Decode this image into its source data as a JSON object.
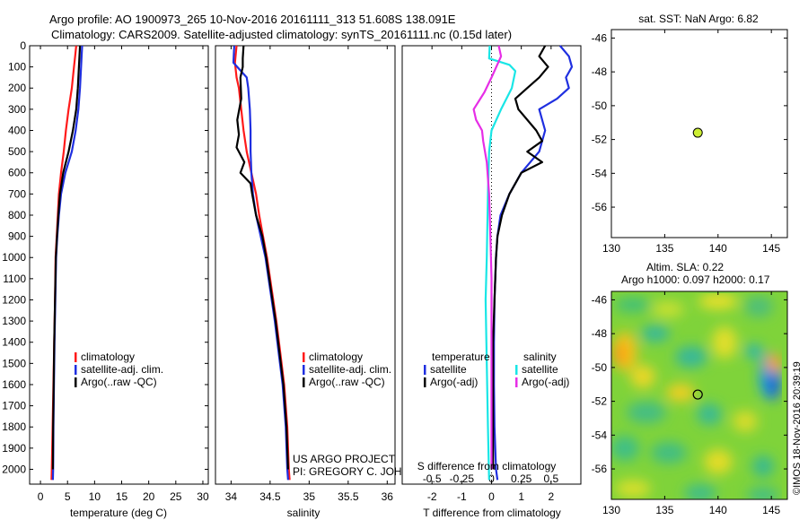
{
  "header": {
    "line1": "Argo profile: AO 1900973_265 10-Nov-2016 20161111_313 51.608S 138.091E",
    "line2": "Climatology: CARS2009. Satellite-adjusted climatology: synTS_20161111.nc (0.15d later)"
  },
  "colors": {
    "climatology": "#ff1a1a",
    "satellite": "#1f2fe0",
    "argo": "#000000",
    "sal_satellite": "#19e6e6",
    "sal_argo": "#e62ee6",
    "marker": "#ccee33"
  },
  "footer": {
    "project": "US ARGO PROJECT",
    "pi": "PI: GREGORY C. JOHNSON",
    "credit": "©IMOS 18-Nov-2016 20:39:19"
  },
  "chart_data": [
    {
      "id": "temperature",
      "type": "line",
      "xlabel": "temperature (deg C)",
      "xlim": [
        -2,
        31
      ],
      "xticks": [
        "0",
        "5",
        "10",
        "15",
        "20",
        "25",
        "30"
      ],
      "ylim": [
        2070,
        0
      ],
      "yticks": [
        "0",
        "100",
        "200",
        "300",
        "400",
        "500",
        "600",
        "700",
        "800",
        "900",
        "1000",
        "1100",
        "1200",
        "1300",
        "1400",
        "1500",
        "1600",
        "1700",
        "1800",
        "1900",
        "2000"
      ],
      "legend": [
        "climatology",
        "satellite-adj. clim.",
        "Argo(..raw -QC)"
      ],
      "series": [
        {
          "name": "climatology",
          "points": [
            [
              6.6,
              0
            ],
            [
              6.4,
              50
            ],
            [
              6.2,
              100
            ],
            [
              5.8,
              200
            ],
            [
              5.2,
              300
            ],
            [
              4.7,
              400
            ],
            [
              4.3,
              500
            ],
            [
              3.8,
              600
            ],
            [
              3.4,
              700
            ],
            [
              3.2,
              800
            ],
            [
              3.0,
              900
            ],
            [
              2.8,
              1000
            ],
            [
              2.7,
              1200
            ],
            [
              2.55,
              1400
            ],
            [
              2.4,
              1600
            ],
            [
              2.25,
              1800
            ],
            [
              2.1,
              2000
            ],
            [
              2.05,
              2050
            ]
          ]
        },
        {
          "name": "satellite-adj. clim.",
          "points": [
            [
              7.7,
              0
            ],
            [
              7.5,
              100
            ],
            [
              7.3,
              200
            ],
            [
              7.0,
              300
            ],
            [
              6.5,
              400
            ],
            [
              5.8,
              500
            ],
            [
              4.6,
              600
            ],
            [
              3.8,
              700
            ],
            [
              3.4,
              800
            ],
            [
              3.1,
              900
            ],
            [
              2.9,
              1000
            ],
            [
              2.75,
              1200
            ],
            [
              2.6,
              1400
            ],
            [
              2.5,
              1600
            ],
            [
              2.4,
              1800
            ],
            [
              2.35,
              2000
            ],
            [
              2.3,
              2050
            ]
          ]
        },
        {
          "name": "Argo(..raw -QC)",
          "points": [
            [
              7.3,
              0
            ],
            [
              7.1,
              100
            ],
            [
              6.9,
              200
            ],
            [
              6.6,
              300
            ],
            [
              6.0,
              400
            ],
            [
              5.2,
              500
            ],
            [
              4.2,
              600
            ],
            [
              3.6,
              700
            ],
            [
              3.3,
              800
            ],
            [
              3.05,
              900
            ],
            [
              2.85,
              1000
            ],
            [
              2.7,
              1200
            ],
            [
              2.55,
              1400
            ],
            [
              2.45,
              1600
            ],
            [
              2.35,
              1800
            ],
            [
              2.3,
              2000
            ]
          ]
        }
      ]
    },
    {
      "id": "salinity",
      "type": "line",
      "xlabel": "salinity",
      "xlim": [
        33.8,
        36.1
      ],
      "xticks": [
        "34",
        "34.5",
        "35",
        "35.5",
        "36"
      ],
      "ylim": [
        2070,
        0
      ],
      "legend": [
        "climatology",
        "satellite-adj. clim.",
        "Argo(..raw -QC)"
      ],
      "series": [
        {
          "name": "climatology",
          "points": [
            [
              34.07,
              0
            ],
            [
              34.05,
              80
            ],
            [
              34.07,
              150
            ],
            [
              34.1,
              200
            ],
            [
              34.13,
              300
            ],
            [
              34.16,
              400
            ],
            [
              34.2,
              500
            ],
            [
              34.26,
              600
            ],
            [
              34.32,
              700
            ],
            [
              34.36,
              800
            ],
            [
              34.41,
              900
            ],
            [
              34.46,
              1000
            ],
            [
              34.52,
              1150
            ],
            [
              34.58,
              1300
            ],
            [
              34.63,
              1450
            ],
            [
              34.68,
              1600
            ],
            [
              34.72,
              1800
            ],
            [
              34.74,
              2000
            ],
            [
              34.75,
              2050
            ]
          ]
        },
        {
          "name": "satellite-adj. clim.",
          "points": [
            [
              34.04,
              0
            ],
            [
              34.03,
              80
            ],
            [
              34.2,
              150
            ],
            [
              34.22,
              200
            ],
            [
              34.24,
              300
            ],
            [
              34.25,
              400
            ],
            [
              34.25,
              500
            ],
            [
              34.26,
              600
            ],
            [
              34.28,
              700
            ],
            [
              34.32,
              800
            ],
            [
              34.38,
              900
            ],
            [
              34.44,
              1000
            ],
            [
              34.5,
              1150
            ],
            [
              34.56,
              1300
            ],
            [
              34.61,
              1450
            ],
            [
              34.66,
              1600
            ],
            [
              34.7,
              1800
            ],
            [
              34.72,
              2000
            ],
            [
              34.73,
              2050
            ]
          ]
        },
        {
          "name": "Argo(..raw -QC)",
          "points": [
            [
              34.16,
              0
            ],
            [
              34.15,
              60
            ],
            [
              34.15,
              100
            ],
            [
              34.12,
              150
            ],
            [
              34.13,
              250
            ],
            [
              34.08,
              350
            ],
            [
              34.1,
              420
            ],
            [
              34.07,
              480
            ],
            [
              34.17,
              550
            ],
            [
              34.12,
              600
            ],
            [
              34.25,
              650
            ],
            [
              34.27,
              700
            ],
            [
              34.32,
              800
            ],
            [
              34.4,
              900
            ],
            [
              34.45,
              1000
            ],
            [
              34.51,
              1150
            ],
            [
              34.57,
              1300
            ],
            [
              34.62,
              1450
            ],
            [
              34.67,
              1600
            ],
            [
              34.71,
              1800
            ],
            [
              34.73,
              2000
            ]
          ]
        }
      ]
    },
    {
      "id": "differences",
      "type": "line",
      "xlabel": "T difference from climatology",
      "xlabel_top": "S difference from climatology",
      "xlim": [
        -3,
        3
      ],
      "xticks": [
        "-2",
        "-1",
        "0",
        "1",
        "2"
      ],
      "xticks_top": [
        "-0.5",
        "-0.25",
        "0",
        "0.25",
        "0.5"
      ],
      "ylim": [
        2070,
        0
      ],
      "legend_temperature": {
        "title": "temperature",
        "items": [
          "satellite",
          "Argo(-adj)"
        ]
      },
      "legend_salinity": {
        "title": "salinity",
        "items": [
          "satellite",
          "Argo(-adj)"
        ]
      },
      "series": [
        {
          "name": "temperature satellite",
          "points": [
            [
              2.3,
              0
            ],
            [
              2.6,
              50
            ],
            [
              2.7,
              100
            ],
            [
              2.5,
              150
            ],
            [
              2.6,
              200
            ],
            [
              2.2,
              250
            ],
            [
              1.6,
              300
            ],
            [
              1.8,
              400
            ],
            [
              1.6,
              500
            ],
            [
              1.0,
              600
            ],
            [
              0.6,
              700
            ],
            [
              0.3,
              800
            ],
            [
              0.2,
              900
            ],
            [
              0.15,
              1000
            ],
            [
              0.1,
              1200
            ],
            [
              0.08,
              1400
            ],
            [
              0.08,
              1600
            ],
            [
              0.1,
              1800
            ],
            [
              0.15,
              2000
            ],
            [
              0.2,
              2050
            ]
          ]
        },
        {
          "name": "temperature Argo(-adj)",
          "points": [
            [
              1.8,
              0
            ],
            [
              1.6,
              50
            ],
            [
              1.9,
              100
            ],
            [
              1.6,
              150
            ],
            [
              1.2,
              200
            ],
            [
              0.8,
              250
            ],
            [
              0.9,
              300
            ],
            [
              1.5,
              400
            ],
            [
              1.7,
              450
            ],
            [
              1.2,
              500
            ],
            [
              1.7,
              550
            ],
            [
              1.0,
              600
            ],
            [
              0.6,
              700
            ],
            [
              0.35,
              800
            ],
            [
              0.2,
              900
            ],
            [
              0.15,
              1000
            ],
            [
              0.1,
              1200
            ],
            [
              0.05,
              1400
            ],
            [
              0.05,
              1600
            ],
            [
              0.05,
              1800
            ],
            [
              0.05,
              2000
            ]
          ]
        },
        {
          "name": "salinity satellite",
          "points": [
            [
              -0.015,
              0
            ],
            [
              -0.02,
              60
            ],
            [
              0.15,
              90
            ],
            [
              0.2,
              120
            ],
            [
              0.17,
              200
            ],
            [
              0.08,
              300
            ],
            [
              0.0,
              400
            ],
            [
              -0.02,
              500
            ],
            [
              -0.03,
              700
            ],
            [
              -0.04,
              1000
            ],
            [
              -0.05,
              1200
            ],
            [
              -0.04,
              1500
            ],
            [
              -0.03,
              1800
            ],
            [
              -0.02,
              2050
            ]
          ]
        },
        {
          "name": "salinity Argo(-adj)",
          "points": [
            [
              0.06,
              0
            ],
            [
              0.08,
              50
            ],
            [
              0.0,
              150
            ],
            [
              -0.06,
              220
            ],
            [
              -0.15,
              300
            ],
            [
              -0.13,
              350
            ],
            [
              -0.08,
              400
            ],
            [
              -0.07,
              450
            ],
            [
              -0.04,
              550
            ],
            [
              -0.02,
              700
            ],
            [
              -0.01,
              900
            ],
            [
              0.0,
              1100
            ],
            [
              0.0,
              1400
            ],
            [
              0.0,
              1700
            ],
            [
              0.0,
              2000
            ]
          ]
        }
      ]
    },
    {
      "id": "sst-map",
      "type": "scatter",
      "title": "sat. SST: NaN Argo: 6.82",
      "xlim": [
        130,
        146.5
      ],
      "ylim": [
        -57.8,
        -45.5
      ],
      "xticks": [
        "130",
        "135",
        "140",
        "145"
      ],
      "yticks": [
        "-46",
        "-48",
        "-50",
        "-52",
        "-54",
        "-56"
      ],
      "points": [
        [
          138.1,
          -51.6
        ]
      ]
    },
    {
      "id": "sla-map",
      "type": "heatmap",
      "title": "Altim. SLA: 0.22",
      "subtitle": "Argo h1000: 0.097 h2000: 0.17",
      "xlim": [
        130,
        146.5
      ],
      "ylim": [
        -57.8,
        -45.5
      ],
      "xticks": [
        "130",
        "135",
        "140",
        "145"
      ],
      "yticks": [
        "-46",
        "-48",
        "-50",
        "-52",
        "-54",
        "-56"
      ],
      "points": [
        [
          138.1,
          -51.6
        ]
      ]
    }
  ]
}
